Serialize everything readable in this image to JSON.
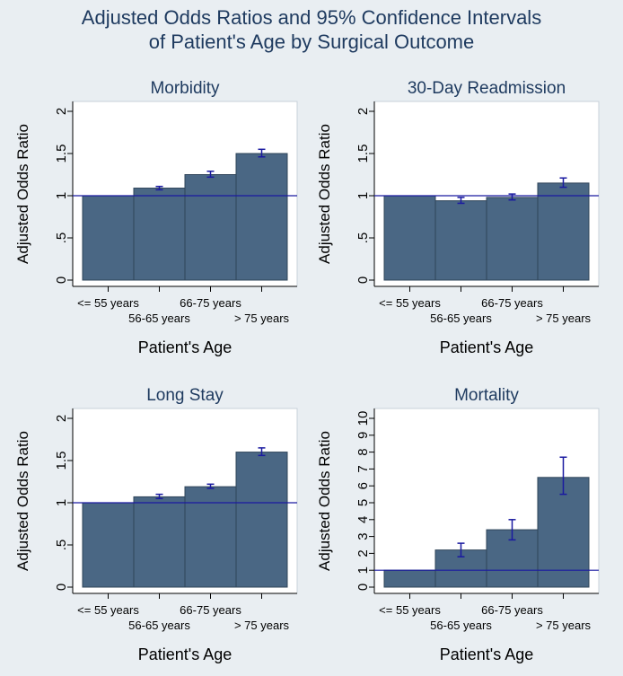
{
  "title_lines": [
    "Adjusted Odds Ratios and 95% Confidence Intervals",
    "of Patient's Age by Surgical Outcome"
  ],
  "colors": {
    "bar_fill": "#4a6784",
    "bar_edge": "#2f4459",
    "ci_color": "#1a1aa0",
    "ref_line": "#1a1aa0",
    "plot_bg": "#ffffff",
    "page_bg": "#e9eef2",
    "title_color": "#1e3a5f"
  },
  "chart_data": [
    {
      "type": "bar",
      "title": "Morbidity",
      "xlabel": "Patient's Age",
      "ylabel": "Adjusted Odds Ratio",
      "categories": [
        "<= 55 years",
        "56-65 years",
        "66-75 years",
        "> 75 years"
      ],
      "values": [
        1.0,
        1.09,
        1.25,
        1.5
      ],
      "ci_low": [
        null,
        1.07,
        1.22,
        1.46
      ],
      "ci_high": [
        null,
        1.11,
        1.29,
        1.55
      ],
      "ylim": [
        0,
        2
      ],
      "yticks": [
        0,
        0.5,
        1,
        1.5,
        2
      ],
      "ytick_labels": [
        "0",
        ".5",
        "1",
        "1.5",
        "2"
      ],
      "reference_line": 1
    },
    {
      "type": "bar",
      "title": "30-Day Readmission",
      "xlabel": "Patient's Age",
      "ylabel": "Adjusted Odds Ratio",
      "categories": [
        "<= 55 years",
        "56-65 years",
        "66-75 years",
        "> 75 years"
      ],
      "values": [
        1.0,
        0.94,
        0.98,
        1.15
      ],
      "ci_low": [
        null,
        0.91,
        0.95,
        1.1
      ],
      "ci_high": [
        null,
        0.98,
        1.02,
        1.21
      ],
      "ylim": [
        0,
        2
      ],
      "yticks": [
        0,
        0.5,
        1,
        1.5,
        2
      ],
      "ytick_labels": [
        "0",
        ".5",
        "1",
        "1.5",
        "2"
      ],
      "reference_line": 1
    },
    {
      "type": "bar",
      "title": "Long Stay",
      "xlabel": "Patient's Age",
      "ylabel": "Adjusted Odds Ratio",
      "categories": [
        "<= 55 years",
        "56-65 years",
        "66-75 years",
        "> 75 years"
      ],
      "values": [
        1.0,
        1.07,
        1.19,
        1.6
      ],
      "ci_low": [
        null,
        1.05,
        1.17,
        1.56
      ],
      "ci_high": [
        null,
        1.1,
        1.22,
        1.65
      ],
      "ylim": [
        0,
        2
      ],
      "yticks": [
        0,
        0.5,
        1,
        1.5,
        2
      ],
      "ytick_labels": [
        "0",
        ".5",
        "1",
        "1.5",
        "2"
      ],
      "reference_line": 1
    },
    {
      "type": "bar",
      "title": "Mortality",
      "xlabel": "Patient's Age",
      "ylabel": "Adjusted Odds Ratio",
      "categories": [
        "<= 55 years",
        "56-65 years",
        "66-75 years",
        "> 75 years"
      ],
      "values": [
        1.0,
        2.2,
        3.4,
        6.5
      ],
      "ci_low": [
        null,
        1.8,
        2.8,
        5.5
      ],
      "ci_high": [
        null,
        2.6,
        4.0,
        7.7
      ],
      "ylim": [
        0,
        10
      ],
      "yticks": [
        0,
        1,
        2,
        3,
        4,
        5,
        6,
        7,
        8,
        9,
        10
      ],
      "ytick_labels": [
        "0",
        "1",
        "2",
        "3",
        "4",
        "5",
        "6",
        "7",
        "8",
        "9",
        "10"
      ],
      "reference_line": 1
    }
  ]
}
